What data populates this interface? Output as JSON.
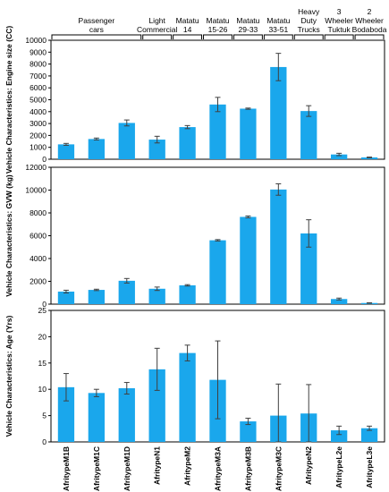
{
  "colors": {
    "bar": "#1aa7ec",
    "error": "#404040",
    "frame": "#000000"
  },
  "groups": [
    {
      "lines": [
        "Passenger",
        "cars"
      ],
      "from": 0,
      "to": 2
    },
    {
      "lines": [
        "Light",
        "Commercial"
      ],
      "from": 3,
      "to": 3
    },
    {
      "lines": [
        "Matatu",
        "14"
      ],
      "from": 4,
      "to": 4
    },
    {
      "lines": [
        "Matatu",
        "15-26"
      ],
      "from": 5,
      "to": 5
    },
    {
      "lines": [
        "Matatu",
        "29-33"
      ],
      "from": 6,
      "to": 6
    },
    {
      "lines": [
        "Matatu",
        "33-51"
      ],
      "from": 7,
      "to": 7
    },
    {
      "lines": [
        "Heavy",
        "Duty",
        "Trucks"
      ],
      "from": 8,
      "to": 8
    },
    {
      "lines": [
        "3",
        "Wheeler",
        "Tuktuk"
      ],
      "from": 9,
      "to": 9
    },
    {
      "lines": [
        "2",
        "Wheeler",
        "Bodaboda"
      ],
      "from": 10,
      "to": 10
    }
  ],
  "chart_data": [
    {
      "type": "bar",
      "categories": [
        "AfritypeM1B",
        "AfritypeM1C",
        "AfritypeM1D",
        "AfritypeN1",
        "AfritypeM2",
        "AfritypeM3A",
        "AfritypeM3B",
        "AfritypeM3C",
        "AfritypeN2",
        "AfritypeL2e",
        "AfritypeL3e"
      ],
      "values": [
        1250,
        1700,
        3050,
        1650,
        2700,
        4600,
        4250,
        7750,
        4050,
        400,
        150
      ],
      "errors": [
        80,
        80,
        250,
        280,
        130,
        600,
        50,
        1150,
        450,
        100,
        30
      ],
      "ylabel": "Vehicle Characteristics: Engine size (CC)",
      "ylim": [
        0,
        10000
      ],
      "yticks": [
        0,
        1000,
        2000,
        3000,
        4000,
        5000,
        6000,
        7000,
        8000,
        9000,
        10000
      ]
    },
    {
      "type": "bar",
      "categories": [
        "AfritypeM1B",
        "AfritypeM1C",
        "AfritypeM1D",
        "AfritypeN1",
        "AfritypeM2",
        "AfritypeM3A",
        "AfritypeM3B",
        "AfritypeM3C",
        "AfritypeN2",
        "AfritypeL2e",
        "AfritypeL3e"
      ],
      "values": [
        1100,
        1250,
        2050,
        1350,
        1650,
        5600,
        7650,
        10050,
        6200,
        450,
        100
      ],
      "errors": [
        120,
        60,
        200,
        150,
        60,
        60,
        80,
        500,
        1200,
        80,
        20
      ],
      "ylabel": "Vehicle Characteristics: GVW (kg)",
      "ylim": [
        0,
        12000
      ],
      "yticks": [
        0,
        2000,
        4000,
        6000,
        8000,
        10000,
        12000
      ]
    },
    {
      "type": "bar",
      "categories": [
        "AfritypeM1B",
        "AfritypeM1C",
        "AfritypeM1D",
        "AfritypeN1",
        "AfritypeM2",
        "AfritypeM3A",
        "AfritypeM3B",
        "AfritypeM3C",
        "AfritypeN2",
        "AfritypeL2e",
        "AfritypeL3e"
      ],
      "values": [
        10.4,
        9.3,
        10.2,
        13.8,
        16.9,
        11.8,
        3.9,
        5.0,
        5.4,
        2.2,
        2.6
      ],
      "errors": [
        2.6,
        0.7,
        1.1,
        4.0,
        1.5,
        7.4,
        0.6,
        6.0,
        5.5,
        0.8,
        0.4
      ],
      "ylabel": "Vehicle Characteristics: Age (Yrs)",
      "ylim": [
        0,
        25
      ],
      "yticks": [
        0,
        5,
        10,
        15,
        20,
        25
      ]
    }
  ]
}
